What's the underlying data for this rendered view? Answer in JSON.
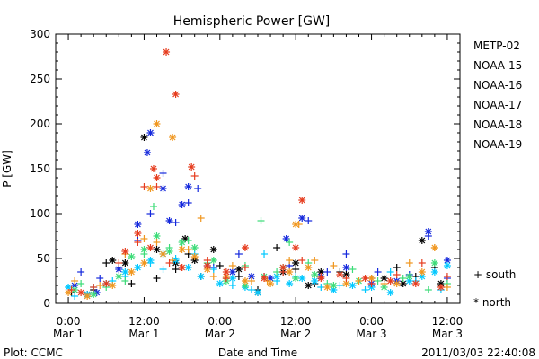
{
  "chart_data": {
    "type": "scatter",
    "title": "Hemispheric Power [GW]",
    "ylabel": "P [GW]",
    "xlabel": "Date and Time",
    "ylim": [
      0,
      300
    ],
    "y_ticks": [
      "0",
      "50",
      "100",
      "150",
      "200",
      "250",
      "300"
    ],
    "x_ticks": [
      {
        "time": "0:00",
        "date": "Mar 1"
      },
      {
        "time": "12:00",
        "date": "Mar 1"
      },
      {
        "time": "0:00",
        "date": "Mar 2"
      },
      {
        "time": "12:00",
        "date": "Mar 2"
      },
      {
        "time": "0:00",
        "date": "Mar 3"
      },
      {
        "time": "12:00",
        "date": "Mar 3"
      }
    ],
    "xlim_hours": [
      -2,
      62
    ],
    "marker_legend": {
      "south": "+ south",
      "north": "* north"
    },
    "series": [
      {
        "name": "METP-02",
        "color": "#000000",
        "south": [
          [
            0.5,
            12
          ],
          [
            4,
            15
          ],
          [
            6,
            45
          ],
          [
            10,
            22
          ],
          [
            14,
            28
          ],
          [
            17,
            38
          ],
          [
            19,
            55
          ],
          [
            21,
            30
          ],
          [
            24,
            42
          ],
          [
            27,
            30
          ],
          [
            30,
            15
          ],
          [
            33,
            62
          ],
          [
            36,
            38
          ],
          [
            39,
            22
          ],
          [
            43,
            35
          ],
          [
            48,
            28
          ],
          [
            52,
            40
          ],
          [
            55,
            30
          ],
          [
            58,
            40
          ]
        ],
        "north": [
          [
            3,
            10
          ],
          [
            7,
            48
          ],
          [
            9,
            45
          ],
          [
            12,
            185
          ],
          [
            14,
            60
          ],
          [
            17,
            45
          ],
          [
            18.5,
            72
          ],
          [
            20,
            48
          ],
          [
            23,
            60
          ],
          [
            27,
            38
          ],
          [
            30,
            12
          ],
          [
            34,
            35
          ],
          [
            36,
            45
          ],
          [
            38,
            20
          ],
          [
            40,
            35
          ],
          [
            44,
            32
          ],
          [
            50,
            28
          ],
          [
            53,
            22
          ],
          [
            56,
            70
          ],
          [
            59,
            22
          ]
        ]
      },
      {
        "name": "NOAA-15",
        "color": "#1428dc",
        "south": [
          [
            2,
            35
          ],
          [
            5,
            28
          ],
          [
            8,
            40
          ],
          [
            11,
            70
          ],
          [
            13,
            100
          ],
          [
            15,
            145
          ],
          [
            17,
            90
          ],
          [
            19,
            112
          ],
          [
            20.5,
            128
          ],
          [
            23,
            40
          ],
          [
            27,
            55
          ],
          [
            31,
            30
          ],
          [
            35,
            42
          ],
          [
            38,
            92
          ],
          [
            41,
            35
          ],
          [
            44,
            55
          ],
          [
            49,
            35
          ],
          [
            54,
            32
          ],
          [
            57,
            75
          ],
          [
            60,
            28
          ]
        ],
        "north": [
          [
            1,
            20
          ],
          [
            4.5,
            12
          ],
          [
            8,
            38
          ],
          [
            11,
            88
          ],
          [
            12.5,
            168
          ],
          [
            13,
            190
          ],
          [
            15,
            128
          ],
          [
            16,
            92
          ],
          [
            18,
            110
          ],
          [
            19,
            130
          ],
          [
            22,
            42
          ],
          [
            26,
            35
          ],
          [
            29,
            30
          ],
          [
            32,
            28
          ],
          [
            34.5,
            72
          ],
          [
            37,
            95
          ],
          [
            40,
            30
          ],
          [
            44,
            40
          ],
          [
            48,
            22
          ],
          [
            52,
            25
          ],
          [
            57,
            80
          ],
          [
            60,
            48
          ]
        ]
      },
      {
        "name": "NOAA-16",
        "color": "#00c8ff",
        "south": [
          [
            1,
            8
          ],
          [
            4,
            18
          ],
          [
            7,
            25
          ],
          [
            9,
            30
          ],
          [
            11,
            40
          ],
          [
            13,
            45
          ],
          [
            15,
            38
          ],
          [
            17,
            50
          ],
          [
            20,
            55
          ],
          [
            23,
            38
          ],
          [
            26,
            20
          ],
          [
            29,
            15
          ],
          [
            31,
            55
          ],
          [
            33,
            25
          ],
          [
            36,
            30
          ],
          [
            40,
            18
          ],
          [
            43,
            20
          ],
          [
            47,
            15
          ],
          [
            51,
            35
          ],
          [
            55,
            25
          ],
          [
            59,
            15
          ]
        ],
        "north": [
          [
            0,
            18
          ],
          [
            3,
            10
          ],
          [
            6,
            22
          ],
          [
            9,
            35
          ],
          [
            11,
            40
          ],
          [
            13,
            48
          ],
          [
            15,
            55
          ],
          [
            17,
            48
          ],
          [
            19,
            40
          ],
          [
            21,
            30
          ],
          [
            24,
            22
          ],
          [
            26,
            28
          ],
          [
            28,
            18
          ],
          [
            30,
            12
          ],
          [
            33,
            30
          ],
          [
            35,
            22
          ],
          [
            37,
            28
          ],
          [
            39,
            25
          ],
          [
            42,
            15
          ],
          [
            45,
            20
          ],
          [
            48,
            18
          ],
          [
            51,
            12
          ],
          [
            54,
            25
          ],
          [
            56,
            30
          ],
          [
            58,
            35
          ],
          [
            60,
            42
          ]
        ]
      },
      {
        "name": "NOAA-17",
        "color": "#3cdc78",
        "south": [
          [
            2,
            22
          ],
          [
            6,
            18
          ],
          [
            9,
            25
          ],
          [
            12,
            55
          ],
          [
            13.5,
            108
          ],
          [
            16,
            62
          ],
          [
            19,
            70
          ],
          [
            22,
            45
          ],
          [
            25,
            28
          ],
          [
            28,
            42
          ],
          [
            30.5,
            92
          ],
          [
            33,
            35
          ],
          [
            35,
            68
          ],
          [
            38,
            45
          ],
          [
            41,
            22
          ],
          [
            45,
            38
          ],
          [
            49,
            25
          ],
          [
            53,
            28
          ],
          [
            57,
            15
          ],
          [
            60,
            22
          ]
        ],
        "north": [
          [
            1,
            15
          ],
          [
            4,
            10
          ],
          [
            8,
            30
          ],
          [
            10,
            52
          ],
          [
            12,
            60
          ],
          [
            14,
            75
          ],
          [
            16,
            58
          ],
          [
            18,
            68
          ],
          [
            20,
            62
          ],
          [
            23,
            48
          ],
          [
            25,
            25
          ],
          [
            28,
            20
          ],
          [
            31,
            30
          ],
          [
            34,
            40
          ],
          [
            36,
            28
          ],
          [
            39,
            32
          ],
          [
            42,
            20
          ],
          [
            46,
            25
          ],
          [
            50,
            18
          ],
          [
            54,
            30
          ],
          [
            58,
            45
          ]
        ]
      },
      {
        "name": "NOAA-18",
        "color": "#f0961e",
        "south": [
          [
            1,
            25
          ],
          [
            5,
            20
          ],
          [
            9,
            55
          ],
          [
            12,
            72
          ],
          [
            14,
            68
          ],
          [
            16.5,
            48
          ],
          [
            19,
            60
          ],
          [
            21,
            95
          ],
          [
            23,
            30
          ],
          [
            26,
            42
          ],
          [
            29,
            25
          ],
          [
            31.5,
            25
          ],
          [
            35,
            48
          ],
          [
            36.5,
            88
          ],
          [
            39,
            48
          ],
          [
            42,
            42
          ],
          [
            46,
            25
          ],
          [
            50,
            22
          ],
          [
            54,
            45
          ],
          [
            58,
            62
          ],
          [
            60,
            18
          ]
        ],
        "north": [
          [
            0,
            12
          ],
          [
            3,
            8
          ],
          [
            7,
            20
          ],
          [
            10,
            35
          ],
          [
            12,
            45
          ],
          [
            13,
            128
          ],
          [
            14,
            200
          ],
          [
            15,
            55
          ],
          [
            16.5,
            185
          ],
          [
            18,
            60
          ],
          [
            20,
            52
          ],
          [
            22,
            38
          ],
          [
            25,
            30
          ],
          [
            28,
            25
          ],
          [
            32,
            22
          ],
          [
            35,
            35
          ],
          [
            36,
            88
          ],
          [
            38,
            40
          ],
          [
            41,
            18
          ],
          [
            44,
            22
          ],
          [
            48,
            28
          ],
          [
            52,
            22
          ],
          [
            56,
            35
          ],
          [
            58,
            62
          ]
        ]
      },
      {
        "name": "NOAA-19",
        "color": "#e63c1e",
        "south": [
          [
            0.5,
            15
          ],
          [
            4,
            18
          ],
          [
            8,
            45
          ],
          [
            11,
            68
          ],
          [
            12,
            130
          ],
          [
            14,
            130
          ],
          [
            16,
            45
          ],
          [
            18,
            40
          ],
          [
            20,
            142
          ],
          [
            22,
            48
          ],
          [
            25,
            28
          ],
          [
            28,
            40
          ],
          [
            31,
            30
          ],
          [
            34,
            35
          ],
          [
            37,
            48
          ],
          [
            40,
            30
          ],
          [
            44,
            28
          ],
          [
            48,
            22
          ],
          [
            52,
            32
          ],
          [
            56,
            45
          ],
          [
            60,
            30
          ]
        ],
        "north": [
          [
            2,
            12
          ],
          [
            6,
            22
          ],
          [
            9,
            58
          ],
          [
            11,
            78
          ],
          [
            13,
            62
          ],
          [
            13.5,
            150
          ],
          [
            14,
            140
          ],
          [
            15.5,
            280
          ],
          [
            17,
            233
          ],
          [
            18,
            40
          ],
          [
            19.5,
            152
          ],
          [
            22,
            42
          ],
          [
            25,
            35
          ],
          [
            28,
            62
          ],
          [
            31,
            28
          ],
          [
            34,
            40
          ],
          [
            36,
            62
          ],
          [
            37,
            115
          ],
          [
            40,
            28
          ],
          [
            43,
            32
          ],
          [
            47,
            28
          ],
          [
            51,
            25
          ],
          [
            55,
            22
          ],
          [
            59,
            18
          ]
        ]
      }
    ]
  },
  "footer": {
    "left": "Plot: CCMC",
    "right": "2011/03/03 22:40:08"
  }
}
